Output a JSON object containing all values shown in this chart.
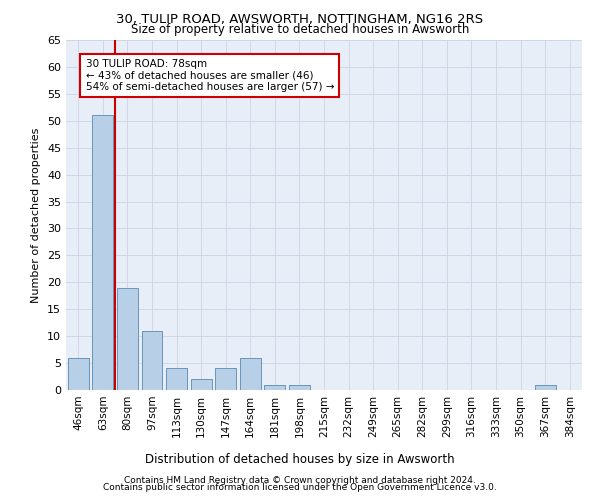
{
  "title": "30, TULIP ROAD, AWSWORTH, NOTTINGHAM, NG16 2RS",
  "subtitle": "Size of property relative to detached houses in Awsworth",
  "xlabel": "Distribution of detached houses by size in Awsworth",
  "ylabel": "Number of detached properties",
  "categories": [
    "46sqm",
    "63sqm",
    "80sqm",
    "97sqm",
    "113sqm",
    "130sqm",
    "147sqm",
    "164sqm",
    "181sqm",
    "198sqm",
    "215sqm",
    "232sqm",
    "249sqm",
    "265sqm",
    "282sqm",
    "299sqm",
    "316sqm",
    "333sqm",
    "350sqm",
    "367sqm",
    "384sqm"
  ],
  "values": [
    6,
    51,
    19,
    11,
    4,
    2,
    4,
    6,
    1,
    1,
    0,
    0,
    0,
    0,
    0,
    0,
    0,
    0,
    0,
    1,
    0
  ],
  "bar_color": "#b8cfe8",
  "bar_edge_color": "#5a8ab0",
  "property_line_color": "#cc0000",
  "annotation_line1": "30 TULIP ROAD: 78sqm",
  "annotation_line2": "← 43% of detached houses are smaller (46)",
  "annotation_line3": "54% of semi-detached houses are larger (57) →",
  "annotation_box_color": "#cc0000",
  "ylim": [
    0,
    65
  ],
  "yticks": [
    0,
    5,
    10,
    15,
    20,
    25,
    30,
    35,
    40,
    45,
    50,
    55,
    60,
    65
  ],
  "grid_color": "#d0d8e8",
  "bg_color": "#e8eef8",
  "footer_line1": "Contains HM Land Registry data © Crown copyright and database right 2024.",
  "footer_line2": "Contains public sector information licensed under the Open Government Licence v3.0."
}
